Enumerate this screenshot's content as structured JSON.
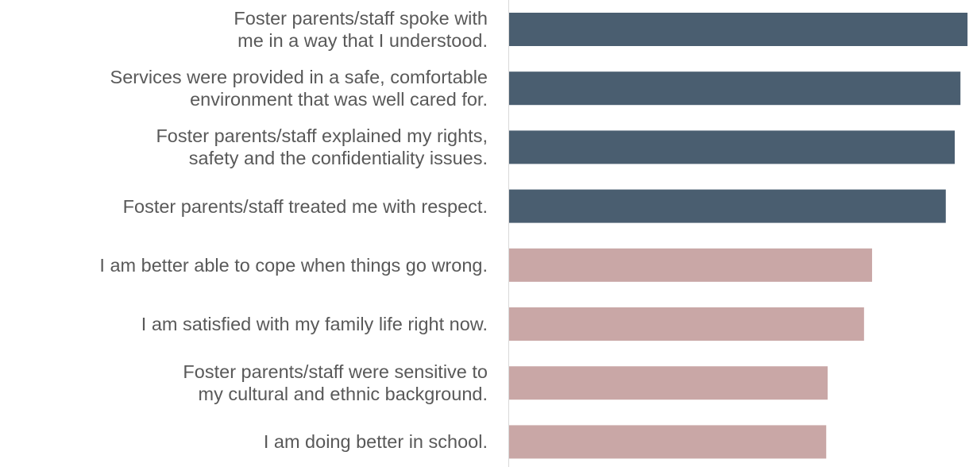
{
  "chart_data": {
    "type": "barh",
    "categories": [
      "Foster parents/staff spoke with me in a way that I understood.",
      "Services were provided in a safe, comfortable environment that was well cared for.",
      "Foster parents/staff explained my rights, safety and the confidentiality issues.",
      "Foster parents/staff treated me with respect.",
      "I am better able to cope when things go wrong.",
      "I am satisfied with my family life right now.",
      "Foster parents/staff were sensitive to my cultural and ethnic background.",
      "I am doing better in school."
    ],
    "values": [
      97,
      95.5,
      94.3,
      92.4,
      76.8,
      75.1,
      67.4,
      67.1
    ],
    "colors": [
      "#4a5e70",
      "#4a5e70",
      "#4a5e70",
      "#4a5e70",
      "#c9a7a6",
      "#c9a7a6",
      "#c9a7a6",
      "#c9a7a6"
    ],
    "xlim": [
      0,
      100
    ]
  }
}
